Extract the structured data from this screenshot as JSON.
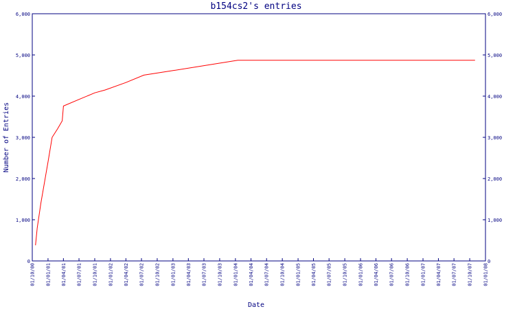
{
  "chart_data": {
    "type": "line",
    "title": "b154cs2's entries",
    "xlabel": "Date",
    "ylabel": "Number of Entries",
    "ylim": [
      0,
      6000
    ],
    "yticks": [
      "0",
      "1,000",
      "2,000",
      "3,000",
      "4,000",
      "5,000",
      "6,000"
    ],
    "ytick_values": [
      0,
      1000,
      2000,
      3000,
      4000,
      5000,
      6000
    ],
    "xlim": [
      "2000-10-01",
      "2008-01-01"
    ],
    "xtick_labels": [
      "01/10/00",
      "01/01/01",
      "01/04/01",
      "01/07/01",
      "01/10/01",
      "01/01/02",
      "01/04/02",
      "01/07/02",
      "01/10/02",
      "01/01/03",
      "01/04/03",
      "01/07/03",
      "01/10/03",
      "01/01/04",
      "01/04/04",
      "01/07/04",
      "01/10/04",
      "01/01/05",
      "01/04/05",
      "01/07/05",
      "01/10/05",
      "01/01/06",
      "01/04/06",
      "01/07/06",
      "01/10/06",
      "01/01/07",
      "01/04/07",
      "01/07/07",
      "01/10/07",
      "01/01/08"
    ],
    "xtick_dates": [
      "2000-10-01",
      "2001-01-01",
      "2001-04-01",
      "2001-07-01",
      "2001-10-01",
      "2002-01-01",
      "2002-04-01",
      "2002-07-01",
      "2002-10-01",
      "2003-01-01",
      "2003-04-01",
      "2003-07-01",
      "2003-10-01",
      "2004-01-01",
      "2004-04-01",
      "2004-07-01",
      "2004-10-01",
      "2005-01-01",
      "2005-04-01",
      "2005-07-01",
      "2005-10-01",
      "2006-01-01",
      "2006-04-01",
      "2006-07-01",
      "2006-10-01",
      "2007-01-01",
      "2007-04-01",
      "2007-07-01",
      "2007-10-01",
      "2008-01-01"
    ],
    "grid": false,
    "series": [
      {
        "color": "#ff0000",
        "points": [
          [
            "2000-10-20",
            380
          ],
          [
            "2000-10-30",
            800
          ],
          [
            "2000-11-20",
            1400
          ],
          [
            "2001-01-01",
            2400
          ],
          [
            "2001-01-25",
            3000
          ],
          [
            "2001-02-25",
            3200
          ],
          [
            "2001-03-25",
            3400
          ],
          [
            "2001-04-01",
            3760
          ],
          [
            "2001-07-01",
            3920
          ],
          [
            "2001-10-01",
            4080
          ],
          [
            "2001-12-01",
            4150
          ],
          [
            "2002-04-01",
            4330
          ],
          [
            "2002-07-15",
            4510
          ],
          [
            "2003-01-01",
            4620
          ],
          [
            "2003-07-01",
            4740
          ],
          [
            "2004-01-15",
            4870
          ],
          [
            "2007-11-01",
            4870
          ]
        ]
      }
    ]
  }
}
